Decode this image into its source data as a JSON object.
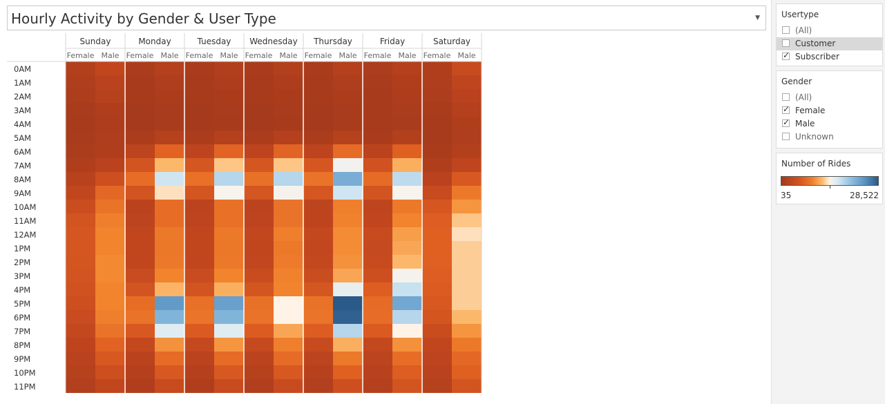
{
  "title": "Hourly Activity by Gender & User Type",
  "filters": {
    "usertype": {
      "title": "Usertype",
      "options": [
        {
          "label": "(All)",
          "checked": false,
          "highlighted": false
        },
        {
          "label": "Customer",
          "checked": false,
          "highlighted": true
        },
        {
          "label": "Subscriber",
          "checked": true,
          "highlighted": false
        }
      ]
    },
    "gender": {
      "title": "Gender",
      "options": [
        {
          "label": "(All)",
          "checked": false,
          "highlighted": false
        },
        {
          "label": "Female",
          "checked": true,
          "highlighted": false
        },
        {
          "label": "Male",
          "checked": true,
          "highlighted": false
        },
        {
          "label": "Unknown",
          "checked": false,
          "highlighted": false
        }
      ]
    }
  },
  "legend": {
    "title": "Number of Rides",
    "min_label": "35",
    "max_label": "28,522",
    "min": 35,
    "max": 28522,
    "colors": {
      "low": "#a53a1c",
      "mid": "#fff3e6",
      "high": "#2b5988"
    }
  },
  "chart_data": {
    "type": "heatmap",
    "title": "Hourly Activity by Gender & User Type",
    "days": [
      "Sunday",
      "Monday",
      "Tuesday",
      "Wednesday",
      "Thursday",
      "Friday",
      "Saturday"
    ],
    "genders": [
      "Female",
      "Male"
    ],
    "hours": [
      "0AM",
      "1AM",
      "2AM",
      "3AM",
      "4AM",
      "5AM",
      "6AM",
      "7AM",
      "8AM",
      "9AM",
      "10AM",
      "11AM",
      "12AM",
      "1PM",
      "2PM",
      "3PM",
      "4PM",
      "5PM",
      "6PM",
      "7PM",
      "8PM",
      "9PM",
      "10PM",
      "11PM"
    ],
    "value_label": "Number of Rides",
    "value_range": [
      35,
      28522
    ],
    "note_values_estimated_from_color": true,
    "values": [
      [
        1500,
        3000,
        700,
        1600,
        600,
        1300,
        600,
        1500,
        600,
        1600,
        800,
        1700,
        1200,
        3500
      ],
      [
        1100,
        2200,
        400,
        1000,
        400,
        900,
        400,
        900,
        400,
        1000,
        500,
        1200,
        1000,
        2800
      ],
      [
        800,
        1800,
        250,
        700,
        250,
        600,
        250,
        600,
        250,
        700,
        350,
        900,
        800,
        2200
      ],
      [
        500,
        1200,
        150,
        500,
        150,
        450,
        150,
        450,
        150,
        500,
        250,
        700,
        600,
        1600
      ],
      [
        400,
        900,
        150,
        450,
        150,
        400,
        150,
        400,
        150,
        450,
        200,
        500,
        400,
        1100
      ],
      [
        500,
        1000,
        700,
        1800,
        700,
        1700,
        700,
        1700,
        700,
        1800,
        600,
        1500,
        400,
        1000
      ],
      [
        700,
        1200,
        2500,
        6000,
        2600,
        6200,
        2600,
        6200,
        2600,
        6800,
        2300,
        5800,
        600,
        1500
      ],
      [
        1200,
        2200,
        4500,
        12000,
        4700,
        12500,
        4700,
        12500,
        4800,
        15200,
        4300,
        11500,
        1200,
        2800
      ],
      [
        2000,
        4000,
        7000,
        17500,
        7200,
        19000,
        7300,
        19000,
        7500,
        22500,
        6800,
        18500,
        2200,
        5000
      ],
      [
        3000,
        6500,
        4500,
        13500,
        4600,
        14800,
        4700,
        15000,
        4800,
        17500,
        4500,
        14800,
        3500,
        8000
      ],
      [
        3800,
        7500,
        2300,
        7000,
        2400,
        7300,
        2400,
        7500,
        2500,
        8500,
        2800,
        8000,
        4800,
        10000
      ],
      [
        4500,
        8500,
        2500,
        7000,
        2600,
        7200,
        2600,
        7500,
        2700,
        8800,
        3000,
        9000,
        5500,
        12500
      ],
      [
        4800,
        9000,
        3000,
        8000,
        3000,
        8000,
        3100,
        8500,
        3200,
        9500,
        3500,
        10500,
        5800,
        13500
      ],
      [
        4700,
        9000,
        3000,
        7800,
        3000,
        7800,
        3000,
        8000,
        3100,
        9500,
        3400,
        11000,
        5800,
        12800
      ],
      [
        4600,
        9300,
        3000,
        8000,
        3000,
        8000,
        3100,
        8200,
        3200,
        9800,
        3500,
        12000,
        5700,
        12800
      ],
      [
        4500,
        9300,
        3600,
        9000,
        3600,
        9000,
        3700,
        8800,
        3800,
        11000,
        4000,
        15000,
        5500,
        12800
      ],
      [
        4300,
        9000,
        4500,
        11800,
        4500,
        11500,
        4600,
        9000,
        4700,
        16000,
        5500,
        18000,
        5300,
        12800
      ],
      [
        4000,
        9000,
        7000,
        24000,
        7200,
        23500,
        7300,
        14200,
        7400,
        28522,
        6800,
        23000,
        5000,
        12800
      ],
      [
        3600,
        8500,
        7500,
        22000,
        7600,
        22000,
        7500,
        14200,
        7600,
        28000,
        7000,
        19000,
        4600,
        12000
      ],
      [
        3200,
        7500,
        5000,
        16500,
        5200,
        16500,
        5300,
        11000,
        5400,
        19000,
        5200,
        14200,
        3700,
        10000
      ],
      [
        2700,
        6000,
        3200,
        9800,
        3300,
        10000,
        3400,
        8500,
        3500,
        11500,
        3200,
        9800,
        3000,
        8000
      ],
      [
        2200,
        5000,
        2300,
        6800,
        2400,
        6800,
        2400,
        6800,
        2500,
        8000,
        2500,
        7000,
        2600,
        6500
      ],
      [
        1800,
        4000,
        1700,
        5000,
        1700,
        5000,
        1800,
        5000,
        1900,
        5800,
        2000,
        5500,
        2200,
        5800
      ],
      [
        1400,
        3000,
        1200,
        3500,
        1200,
        3500,
        1300,
        3500,
        1400,
        4000,
        1700,
        4500,
        1800,
        4500
      ]
    ]
  }
}
